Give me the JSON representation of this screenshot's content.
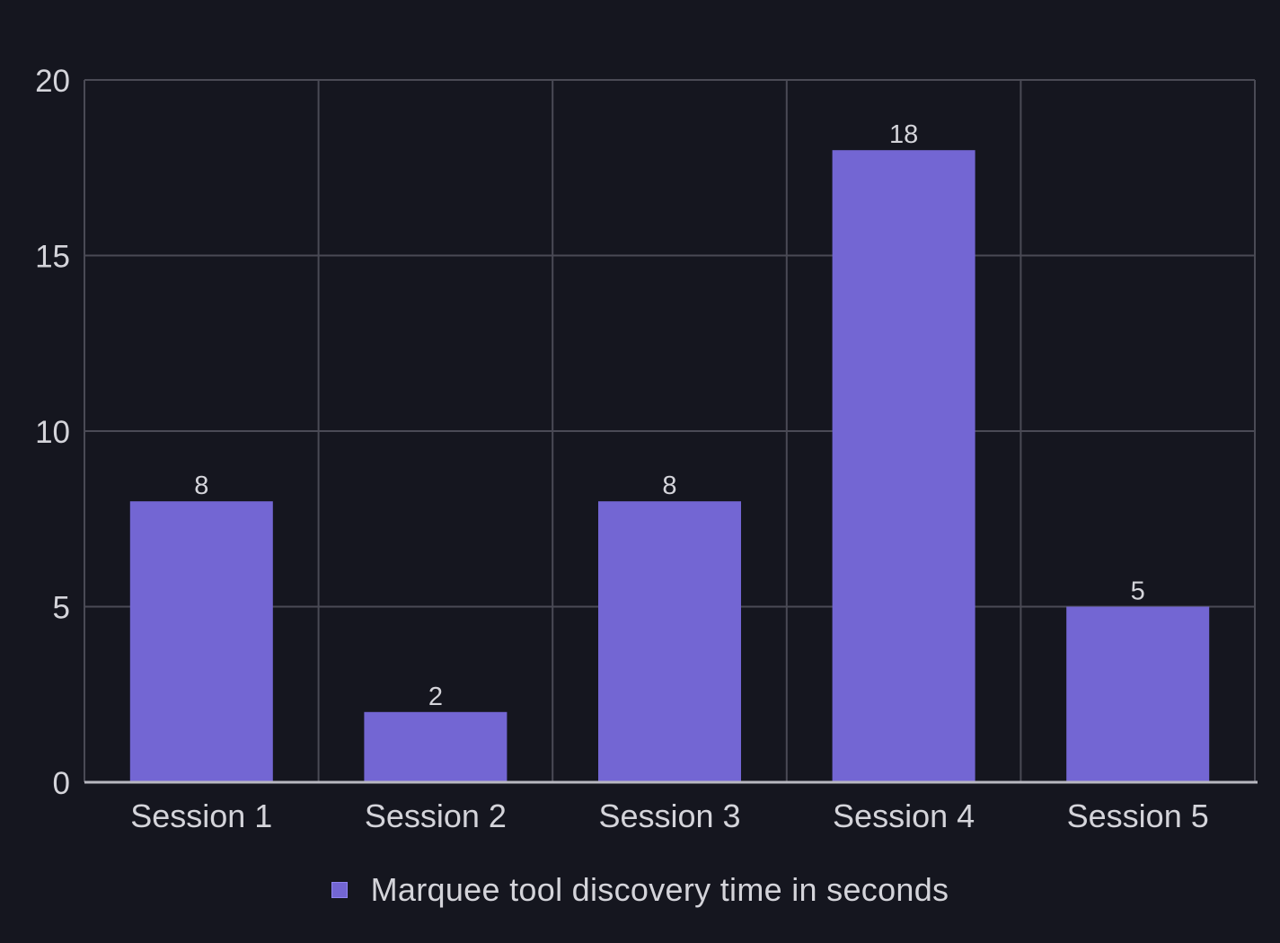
{
  "chart_data": {
    "type": "bar",
    "title": "",
    "xlabel": "",
    "ylabel": "",
    "categories": [
      "Session 1",
      "Session 2",
      "Session 3",
      "Session 4",
      "Session 5"
    ],
    "series": [
      {
        "name": "Marquee tool discovery time in seconds",
        "values": [
          8,
          2,
          8,
          18,
          5
        ],
        "color": "#7366d3"
      }
    ],
    "ylim": [
      0,
      20
    ],
    "yticks": [
      0,
      5,
      10,
      15,
      20
    ],
    "grid": true,
    "data_labels": true,
    "legend_position": "bottom"
  },
  "colors": {
    "background": "#15161f",
    "grid": "#4a4a55",
    "axis": "#b8b8c0",
    "text": "#d4d4da",
    "bar": "#7366d3"
  }
}
